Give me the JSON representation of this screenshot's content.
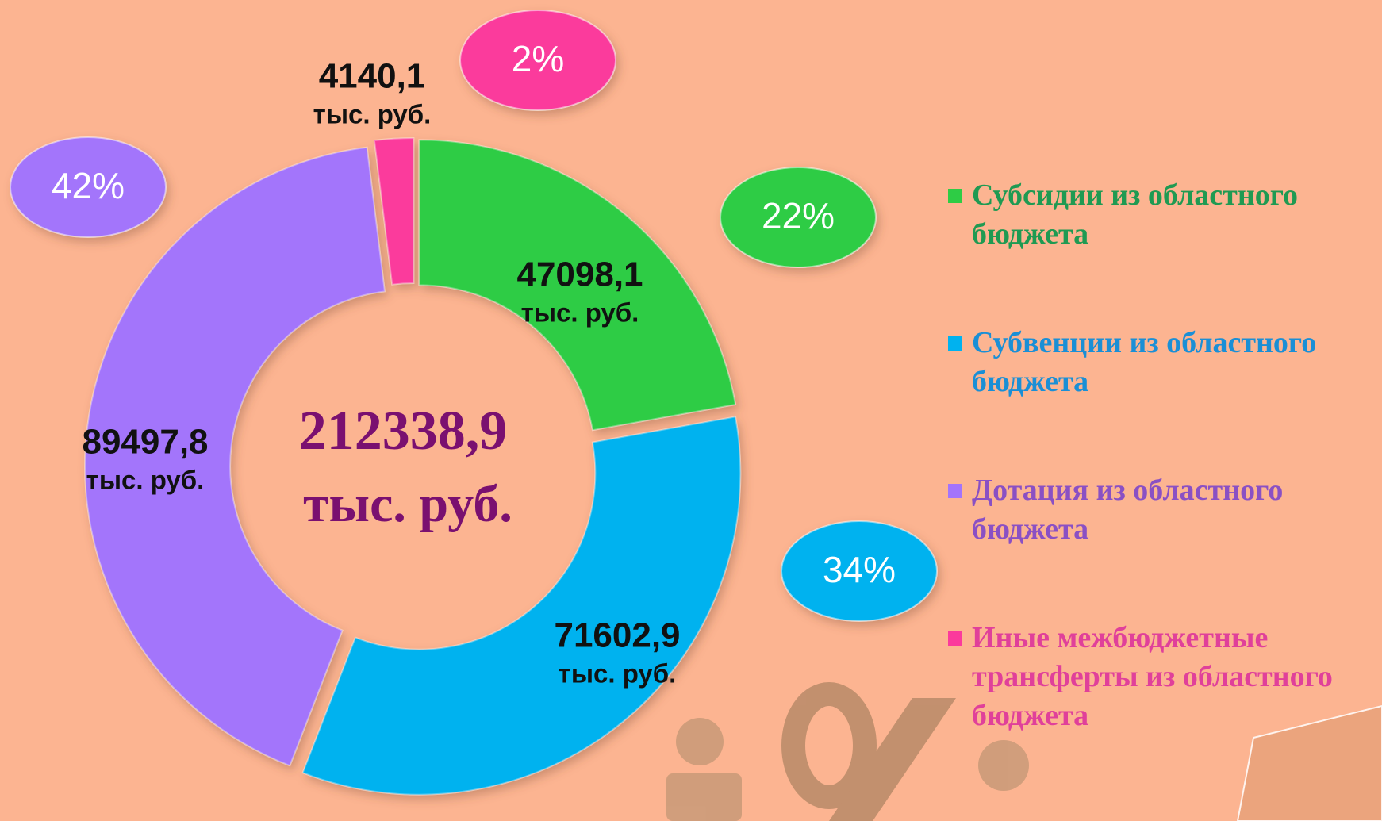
{
  "chart_data": {
    "type": "pie",
    "donut": true,
    "categories": [
      "Субсидии из областного бюджета",
      "Субвенции из областного бюджета",
      "Дотация из областного бюджета",
      "Иные межбюджетные трансферты из областного бюджета"
    ],
    "values": [
      47098.1,
      71602.9,
      89497.8,
      4140.1
    ],
    "value_labels": [
      "47098,1",
      "71602,9",
      "89497,8",
      "4140,1"
    ],
    "percent_labels": [
      "22%",
      "34%",
      "42%",
      "2%"
    ],
    "unit": "тыс. руб.",
    "total_label": "212338,9",
    "colors": [
      "#2ecc45",
      "#00b2ef",
      "#a374fb",
      "#fb3a9c"
    ],
    "legend_colors": [
      "#1f9a52",
      "#1a8fd6",
      "#8a50c4",
      "#e0409a"
    ]
  }
}
